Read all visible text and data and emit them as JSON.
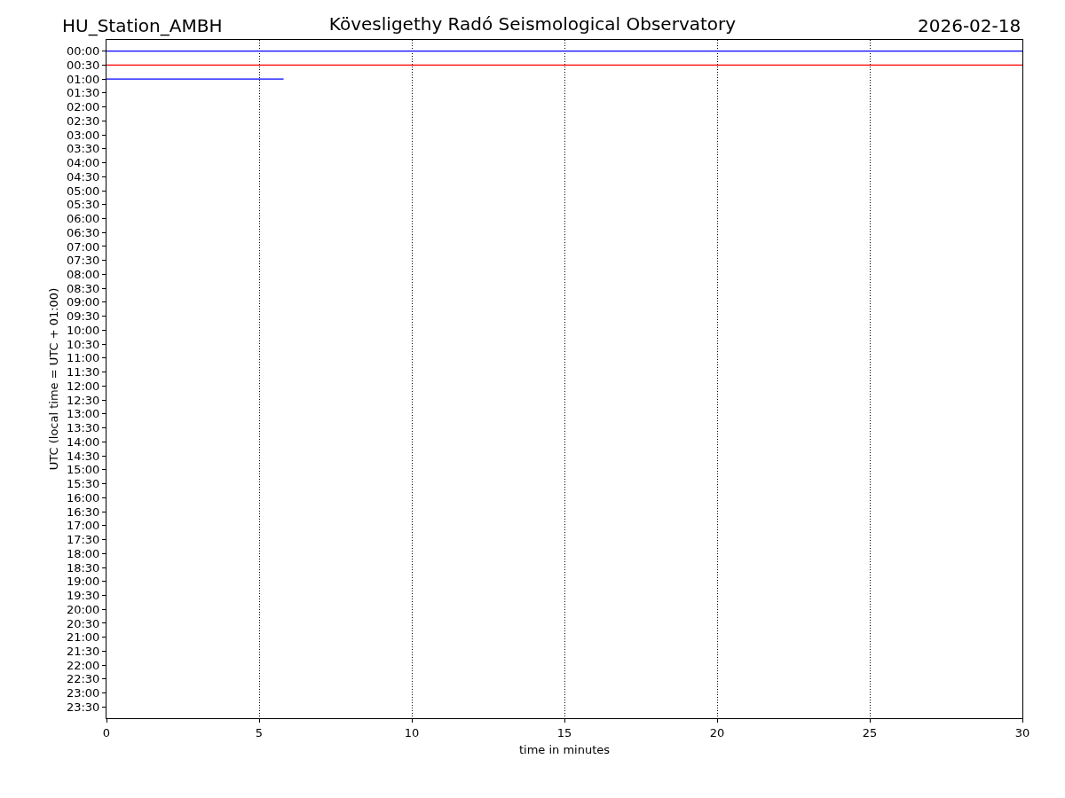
{
  "chart_data": {
    "type": "line",
    "title": "Kövesligethy Radó Seismological Observatory",
    "annotations": [
      "HU_Station_AMBH",
      "2026-02-18"
    ],
    "xlabel": "time in minutes",
    "ylabel": "UTC (local time = UTC + 01:00)",
    "series": [
      {
        "color": "#0000ff",
        "x": [
          0,
          5,
          10,
          15,
          20,
          25,
          30
        ],
        "values": [
          0,
          0,
          0,
          0,
          0,
          0,
          0
        ]
      },
      {
        "color": "#ff0000",
        "x": [
          0,
          5,
          10,
          15,
          20,
          25,
          30
        ],
        "values": [
          0.5,
          0.5,
          0.5,
          0.5,
          0.5,
          0.5,
          0.5
        ]
      },
      {
        "color": "#0000ff",
        "x": [
          0,
          2.5,
          5.8
        ],
        "values": [
          1,
          1,
          1
        ]
      }
    ],
    "xlim": [
      0,
      30
    ],
    "xticks": [
      0,
      5,
      10,
      15,
      20,
      25,
      30
    ],
    "ylim": [
      23.9,
      -0.4
    ],
    "yticks": [
      {
        "value": 0,
        "label": "00:00"
      },
      {
        "value": 0.5,
        "label": "00:30"
      },
      {
        "value": 1,
        "label": "01:00"
      },
      {
        "value": 1.5,
        "label": "01:30"
      },
      {
        "value": 2,
        "label": "02:00"
      },
      {
        "value": 2.5,
        "label": "02:30"
      },
      {
        "value": 3,
        "label": "03:00"
      },
      {
        "value": 3.5,
        "label": "03:30"
      },
      {
        "value": 4,
        "label": "04:00"
      },
      {
        "value": 4.5,
        "label": "04:30"
      },
      {
        "value": 5,
        "label": "05:00"
      },
      {
        "value": 5.5,
        "label": "05:30"
      },
      {
        "value": 6,
        "label": "06:00"
      },
      {
        "value": 6.5,
        "label": "06:30"
      },
      {
        "value": 7,
        "label": "07:00"
      },
      {
        "value": 7.5,
        "label": "07:30"
      },
      {
        "value": 8,
        "label": "08:00"
      },
      {
        "value": 8.5,
        "label": "08:30"
      },
      {
        "value": 9,
        "label": "09:00"
      },
      {
        "value": 9.5,
        "label": "09:30"
      },
      {
        "value": 10,
        "label": "10:00"
      },
      {
        "value": 10.5,
        "label": "10:30"
      },
      {
        "value": 11,
        "label": "11:00"
      },
      {
        "value": 11.5,
        "label": "11:30"
      },
      {
        "value": 12,
        "label": "12:00"
      },
      {
        "value": 12.5,
        "label": "12:30"
      },
      {
        "value": 13,
        "label": "13:00"
      },
      {
        "value": 13.5,
        "label": "13:30"
      },
      {
        "value": 14,
        "label": "14:00"
      },
      {
        "value": 14.5,
        "label": "14:30"
      },
      {
        "value": 15,
        "label": "15:00"
      },
      {
        "value": 15.5,
        "label": "15:30"
      },
      {
        "value": 16,
        "label": "16:00"
      },
      {
        "value": 16.5,
        "label": "16:30"
      },
      {
        "value": 17,
        "label": "17:00"
      },
      {
        "value": 17.5,
        "label": "17:30"
      },
      {
        "value": 18,
        "label": "18:00"
      },
      {
        "value": 18.5,
        "label": "18:30"
      },
      {
        "value": 19,
        "label": "19:00"
      },
      {
        "value": 19.5,
        "label": "19:30"
      },
      {
        "value": 20,
        "label": "20:00"
      },
      {
        "value": 20.5,
        "label": "20:30"
      },
      {
        "value": 21,
        "label": "21:00"
      },
      {
        "value": 21.5,
        "label": "21:30"
      },
      {
        "value": 22,
        "label": "22:00"
      },
      {
        "value": 22.5,
        "label": "22:30"
      },
      {
        "value": 23,
        "label": "23:00"
      },
      {
        "value": 23.5,
        "label": "23:30"
      }
    ],
    "grid": "x"
  }
}
